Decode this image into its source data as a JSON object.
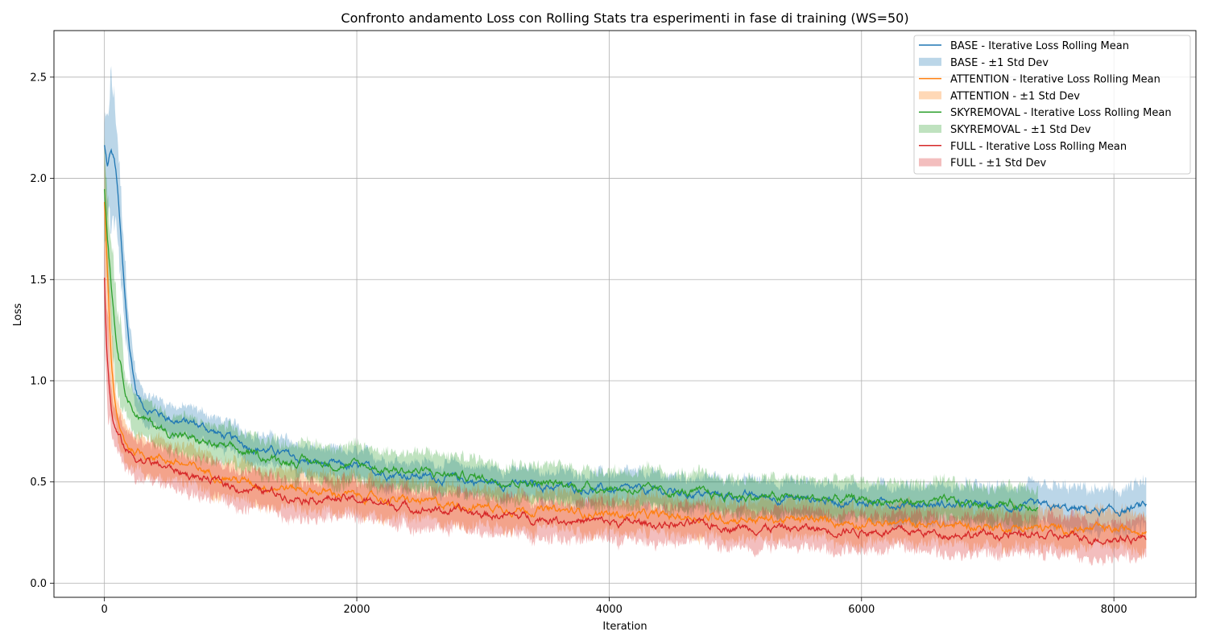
{
  "chart_data": {
    "type": "line",
    "title": "Confronto andamento Loss con Rolling Stats tra esperimenti in fase di training (WS=50)",
    "xlabel": "Iteration",
    "ylabel": "Loss",
    "xlim": [
      -400,
      8650
    ],
    "ylim": [
      -0.07,
      2.73
    ],
    "xticks": [
      0,
      2000,
      4000,
      6000,
      8000
    ],
    "xtick_labels": [
      "0",
      "2000",
      "4000",
      "6000",
      "8000"
    ],
    "yticks": [
      0.0,
      0.5,
      1.0,
      1.5,
      2.0,
      2.5
    ],
    "ytick_labels": [
      "0.0",
      "0.5",
      "1.0",
      "1.5",
      "2.0",
      "2.5"
    ],
    "grid": true,
    "legend_position": "top-right",
    "series": [
      {
        "name": "BASE - Iterative Loss Rolling Mean",
        "band_name": "BASE - ±1 Std Dev",
        "color": "#1f77b4",
        "x": [
          0,
          25,
          50,
          75,
          100,
          130,
          160,
          200,
          250,
          300,
          350,
          400,
          500,
          600,
          700,
          800,
          900,
          1000,
          1200,
          1400,
          1600,
          1800,
          2000,
          2200,
          2500,
          3000,
          3500,
          4000,
          4500,
          5000,
          5500,
          6000,
          6500,
          7000,
          7500,
          8000,
          8260
        ],
        "mean": [
          2.16,
          2.05,
          2.13,
          2.1,
          1.98,
          1.7,
          1.42,
          1.15,
          0.95,
          0.88,
          0.86,
          0.85,
          0.82,
          0.8,
          0.79,
          0.77,
          0.74,
          0.71,
          0.67,
          0.64,
          0.6,
          0.58,
          0.57,
          0.55,
          0.53,
          0.5,
          0.48,
          0.46,
          0.45,
          0.43,
          0.42,
          0.4,
          0.39,
          0.38,
          0.37,
          0.35,
          0.38
        ],
        "std": [
          0.12,
          0.22,
          0.35,
          0.3,
          0.25,
          0.22,
          0.18,
          0.12,
          0.08,
          0.07,
          0.07,
          0.07,
          0.07,
          0.07,
          0.07,
          0.07,
          0.07,
          0.07,
          0.07,
          0.07,
          0.07,
          0.07,
          0.07,
          0.07,
          0.07,
          0.07,
          0.07,
          0.08,
          0.08,
          0.08,
          0.08,
          0.08,
          0.09,
          0.09,
          0.1,
          0.1,
          0.11
        ]
      },
      {
        "name": "ATTENTION - Iterative Loss Rolling Mean",
        "band_name": "ATTENTION - ±1 Std Dev",
        "color": "#ff7f0e",
        "x": [
          0,
          20,
          40,
          60,
          80,
          100,
          130,
          160,
          200,
          250,
          300,
          400,
          500,
          700,
          1000,
          1200,
          1500,
          2000,
          2500,
          3000,
          3500,
          4000,
          4500,
          5000,
          5500,
          6000,
          6500,
          7000,
          7500,
          8000,
          8260
        ],
        "mean": [
          1.88,
          1.6,
          1.3,
          1.05,
          0.9,
          0.8,
          0.74,
          0.7,
          0.67,
          0.65,
          0.64,
          0.63,
          0.61,
          0.57,
          0.52,
          0.49,
          0.47,
          0.43,
          0.4,
          0.38,
          0.36,
          0.34,
          0.33,
          0.32,
          0.31,
          0.3,
          0.29,
          0.28,
          0.27,
          0.26,
          0.27
        ]
      },
      {
        "name": "SKYREMOVAL - Iterative Loss Rolling Mean",
        "band_name": "SKYREMOVAL - ±1 Std Dev",
        "color": "#2ca02c",
        "x": [
          0,
          20,
          40,
          60,
          80,
          100,
          130,
          160,
          200,
          250,
          300,
          400,
          500,
          700,
          1000,
          1200,
          1400,
          1600,
          2000,
          2500,
          3000,
          3500,
          4000,
          4500,
          5000,
          5500,
          6000,
          6500,
          7000,
          7400
        ],
        "mean": [
          1.95,
          1.75,
          1.6,
          1.45,
          1.3,
          1.18,
          1.08,
          0.98,
          0.9,
          0.84,
          0.81,
          0.78,
          0.75,
          0.71,
          0.66,
          0.63,
          0.61,
          0.6,
          0.58,
          0.55,
          0.52,
          0.49,
          0.47,
          0.45,
          0.43,
          0.42,
          0.41,
          0.4,
          0.39,
          0.39
        ]
      },
      {
        "name": "FULL - Iterative Loss Rolling Mean",
        "band_name": "FULL - ±1 Std Dev",
        "color": "#d62728",
        "x": [
          0,
          15,
          30,
          45,
          60,
          80,
          100,
          130,
          160,
          200,
          250,
          300,
          400,
          500,
          700,
          1000,
          1200,
          1500,
          2000,
          2500,
          3000,
          3500,
          4000,
          4500,
          5000,
          5500,
          6000,
          6500,
          7000,
          7500,
          8000,
          8260
        ],
        "mean": [
          1.5,
          1.2,
          1.05,
          0.92,
          0.83,
          0.77,
          0.74,
          0.7,
          0.67,
          0.64,
          0.62,
          0.61,
          0.59,
          0.57,
          0.53,
          0.48,
          0.46,
          0.43,
          0.41,
          0.37,
          0.34,
          0.32,
          0.3,
          0.29,
          0.28,
          0.27,
          0.26,
          0.25,
          0.24,
          0.23,
          0.22,
          0.23
        ]
      }
    ]
  }
}
